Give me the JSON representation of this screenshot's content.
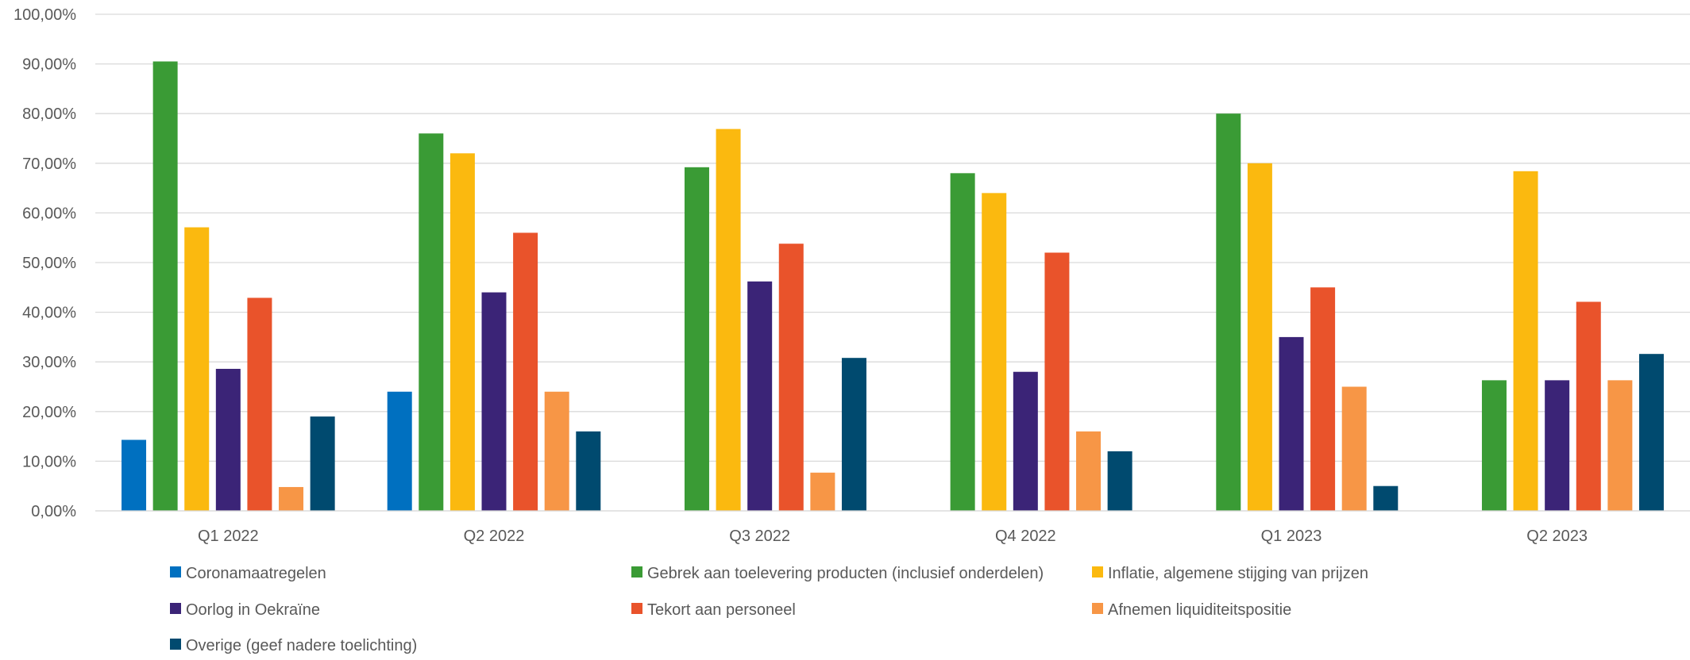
{
  "chart_data": {
    "type": "bar",
    "categories": [
      "Q1 2022",
      "Q2 2022",
      "Q3 2022",
      "Q4 2022",
      "Q1 2023",
      "Q2 2023"
    ],
    "ylim": [
      0,
      100
    ],
    "y_tick_values": [
      0,
      10,
      20,
      30,
      40,
      50,
      60,
      70,
      80,
      90,
      100
    ],
    "y_tick_labels": [
      "0,00%",
      "10,00%",
      "20,00%",
      "30,00%",
      "40,00%",
      "50,00%",
      "60,00%",
      "70,00%",
      "80,00%",
      "90,00%",
      "100,00%"
    ],
    "grid": true,
    "legend_position": "bottom",
    "series": [
      {
        "name": "Coronamaatregelen",
        "color": "#0070C0",
        "values": [
          14.3,
          24,
          null,
          null,
          null,
          null
        ]
      },
      {
        "name": "Gebrek aan toelevering producten (inclusief onderdelen)",
        "color": "#3A9B35",
        "values": [
          90.5,
          76,
          69.2,
          68,
          80,
          26.3
        ]
      },
      {
        "name": "Inflatie, algemene stijging van prijzen",
        "color": "#FBB90F",
        "values": [
          57.1,
          72,
          76.9,
          64,
          70,
          68.4
        ]
      },
      {
        "name": "Oorlog in Oekraïne",
        "color": "#3B2477",
        "values": [
          28.6,
          44,
          46.2,
          28,
          35,
          26.3
        ]
      },
      {
        "name": "Tekort aan personeel",
        "color": "#E9532B",
        "values": [
          42.9,
          56,
          53.8,
          52,
          45,
          42.1
        ]
      },
      {
        "name": "Afnemen liquiditeitspositie",
        "color": "#F79646",
        "values": [
          4.8,
          24,
          7.7,
          16,
          25,
          26.3
        ]
      },
      {
        "name": "Overige (geef nadere toelichting)",
        "color": "#004A6F",
        "values": [
          19,
          16,
          30.8,
          12,
          5,
          31.6
        ]
      }
    ]
  }
}
